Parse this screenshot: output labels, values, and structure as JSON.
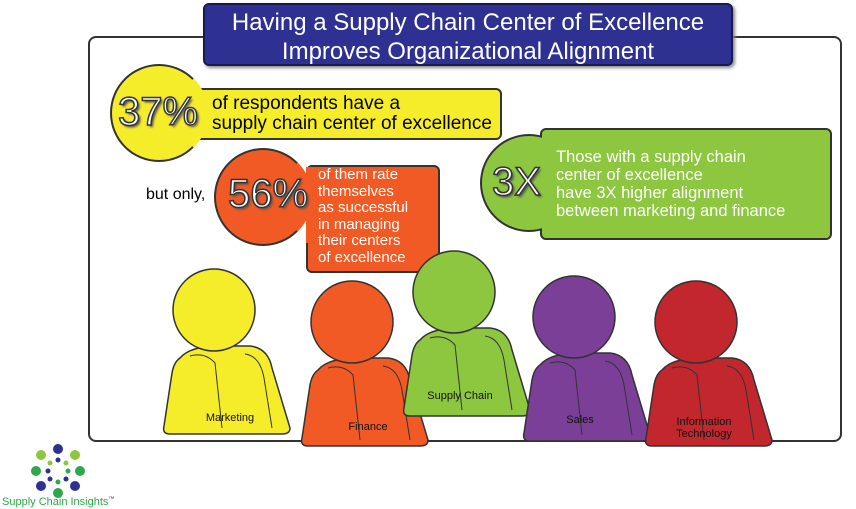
{
  "title": {
    "line1": "Having a Supply Chain Center of Excellence",
    "line2": "Improves Organizational Alignment"
  },
  "stats": [
    {
      "value": "37%",
      "text_lines": [
        "of respondents have a",
        "supply chain center of excellence"
      ],
      "color": "#f5ec2a"
    },
    {
      "prefix": "but only,",
      "value": "56%",
      "text_lines": [
        "of them rate",
        "themselves",
        "as successful",
        "in managing",
        "their centers",
        "of excellence"
      ],
      "color": "#f15a24"
    },
    {
      "value": "3X",
      "text_lines": [
        "Those with a supply chain",
        "center of excellence",
        "have 3X higher alignment",
        "between marketing and finance"
      ],
      "color": "#8dc63f"
    }
  ],
  "people": [
    {
      "label": "Marketing",
      "color": "#f5ec2a"
    },
    {
      "label": "Finance",
      "color": "#f15a24"
    },
    {
      "label": "Supply Chain",
      "color": "#8dc63f"
    },
    {
      "label": "Sales",
      "color": "#7b3f98"
    },
    {
      "label": "Information Technology",
      "color": "#c1272d"
    }
  ],
  "logo": {
    "text": "Supply Chain Insights",
    "tm": "™"
  }
}
